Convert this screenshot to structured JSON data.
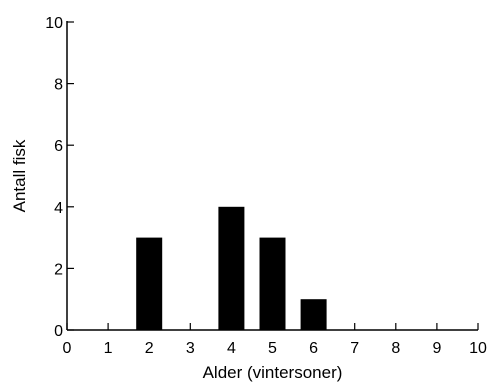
{
  "chart_data": {
    "type": "bar",
    "xlabel": "Alder (vintersoner)",
    "ylabel": "Antall fisk",
    "xlim": [
      0,
      10
    ],
    "ylim": [
      0,
      10
    ],
    "x_ticks": [
      "0",
      "1",
      "2",
      "3",
      "4",
      "5",
      "6",
      "7",
      "8",
      "9",
      "10"
    ],
    "y_ticks": [
      "0",
      "2",
      "4",
      "6",
      "8",
      "10"
    ],
    "bars": [
      {
        "x": 2,
        "value": 3
      },
      {
        "x": 4,
        "value": 4
      },
      {
        "x": 5,
        "value": 3
      },
      {
        "x": 6,
        "value": 1
      }
    ],
    "bar_color": "#000000",
    "grid": false,
    "legend": "none"
  }
}
